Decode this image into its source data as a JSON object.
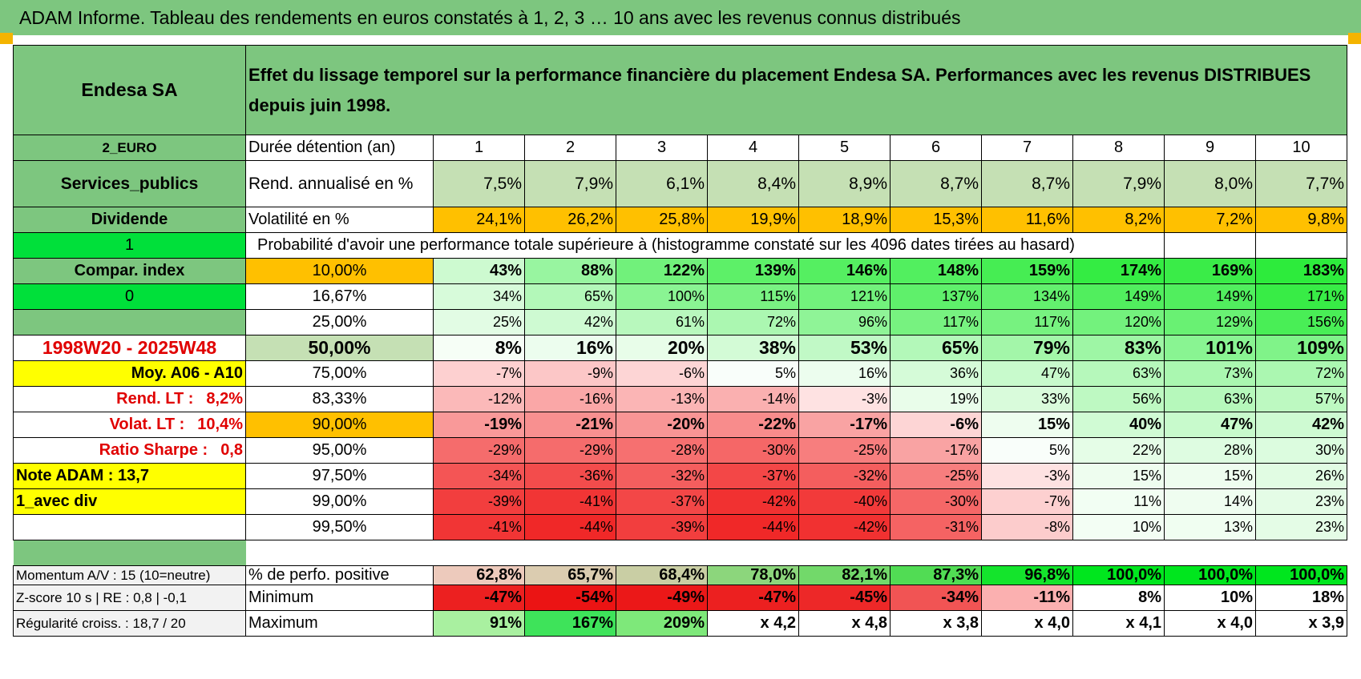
{
  "banner": "ADAM Informe. Tableau des rendements en euros constatés à 1, 2, 3 … 10 ans avec les revenus connus distribués",
  "header": {
    "name": "Endesa SA",
    "description": "Effet du lissage temporel sur la performance financière du placement Endesa SA. Performances avec les revenus DISTRIBUES depuis juin 1998."
  },
  "side": {
    "currency": "2_EURO",
    "sector": "Services_publics",
    "type": "Dividende",
    "flag1": "1",
    "compar": "Compar. index",
    "flag0": "0",
    "period": "1998W20 - 2025W48",
    "moy": "Moy. A06 - A10",
    "rend_lt_label": "Rend. LT :",
    "rend_lt_value": "8,2%",
    "volat_lt_label": "Volat. LT :",
    "volat_lt_value": "10,4%",
    "sharpe_label": "Ratio Sharpe :",
    "sharpe_value": "0,8",
    "note": "Note ADAM : 13,7",
    "div": "1_avec div",
    "momentum": "Momentum A/V : 15 (10=neutre)",
    "zscore": "Z-score 10 s | RE : 0,8 | -0,1",
    "regularite": "Régularité croiss. : 18,7 / 20"
  },
  "rows": {
    "duree_label": "Durée détention (an)",
    "years": [
      "1",
      "2",
      "3",
      "4",
      "5",
      "6",
      "7",
      "8",
      "9",
      "10"
    ],
    "rend_label": "Rend. annualisé en %",
    "rend": [
      "7,5%",
      "7,9%",
      "6,1%",
      "8,4%",
      "8,9%",
      "8,7%",
      "8,7%",
      "7,9%",
      "8,0%",
      "7,7%"
    ],
    "vol_label": "Volatilité en %",
    "vol": [
      "24,1%",
      "26,2%",
      "25,8%",
      "19,9%",
      "18,9%",
      "15,3%",
      "11,6%",
      "8,2%",
      "7,2%",
      "9,8%"
    ],
    "proba_label": "Probabilité d'avoir une performance totale supérieure à (histogramme constaté sur les 4096 dates tirées au hasard)",
    "pos_label": "% de perfo. positive",
    "pos": [
      "62,8%",
      "65,7%",
      "68,4%",
      "78,0%",
      "82,1%",
      "87,3%",
      "96,8%",
      "100,0%",
      "100,0%",
      "100,0%"
    ],
    "min_label": "Minimum",
    "min": [
      "-47%",
      "-54%",
      "-49%",
      "-47%",
      "-45%",
      "-34%",
      "-11%",
      "8%",
      "10%",
      "18%"
    ],
    "max_label": "Maximum",
    "max": [
      "91%",
      "167%",
      "209%",
      "x 4,2",
      "x 4,8",
      "x 3,8",
      "x 4,0",
      "x 4,1",
      "x 4,0",
      "x 3,9"
    ]
  },
  "percentiles": [
    {
      "p": "10,00%",
      "v": [
        "43%",
        "88%",
        "122%",
        "139%",
        "146%",
        "148%",
        "159%",
        "174%",
        "169%",
        "183%"
      ]
    },
    {
      "p": "16,67%",
      "v": [
        "34%",
        "65%",
        "100%",
        "115%",
        "121%",
        "137%",
        "134%",
        "149%",
        "149%",
        "171%"
      ]
    },
    {
      "p": "25,00%",
      "v": [
        "25%",
        "42%",
        "61%",
        "72%",
        "96%",
        "117%",
        "117%",
        "120%",
        "129%",
        "156%"
      ]
    },
    {
      "p": "50,00%",
      "v": [
        "8%",
        "16%",
        "20%",
        "38%",
        "53%",
        "65%",
        "79%",
        "83%",
        "101%",
        "109%"
      ]
    },
    {
      "p": "75,00%",
      "v": [
        "-7%",
        "-9%",
        "-6%",
        "5%",
        "16%",
        "36%",
        "47%",
        "63%",
        "73%",
        "72%"
      ]
    },
    {
      "p": "83,33%",
      "v": [
        "-12%",
        "-16%",
        "-13%",
        "-14%",
        "-3%",
        "19%",
        "33%",
        "56%",
        "63%",
        "57%"
      ]
    },
    {
      "p": "90,00%",
      "v": [
        "-19%",
        "-21%",
        "-20%",
        "-22%",
        "-17%",
        "-6%",
        "15%",
        "40%",
        "47%",
        "42%"
      ]
    },
    {
      "p": "95,00%",
      "v": [
        "-29%",
        "-29%",
        "-28%",
        "-30%",
        "-25%",
        "-17%",
        "5%",
        "22%",
        "28%",
        "30%"
      ]
    },
    {
      "p": "97,50%",
      "v": [
        "-34%",
        "-36%",
        "-32%",
        "-37%",
        "-32%",
        "-25%",
        "-3%",
        "15%",
        "15%",
        "26%"
      ]
    },
    {
      "p": "99,00%",
      "v": [
        "-39%",
        "-41%",
        "-37%",
        "-42%",
        "-40%",
        "-30%",
        "-7%",
        "11%",
        "14%",
        "23%"
      ]
    },
    {
      "p": "99,50%",
      "v": [
        "-41%",
        "-44%",
        "-39%",
        "-44%",
        "-42%",
        "-31%",
        "-8%",
        "10%",
        "13%",
        "23%"
      ]
    }
  ]
}
